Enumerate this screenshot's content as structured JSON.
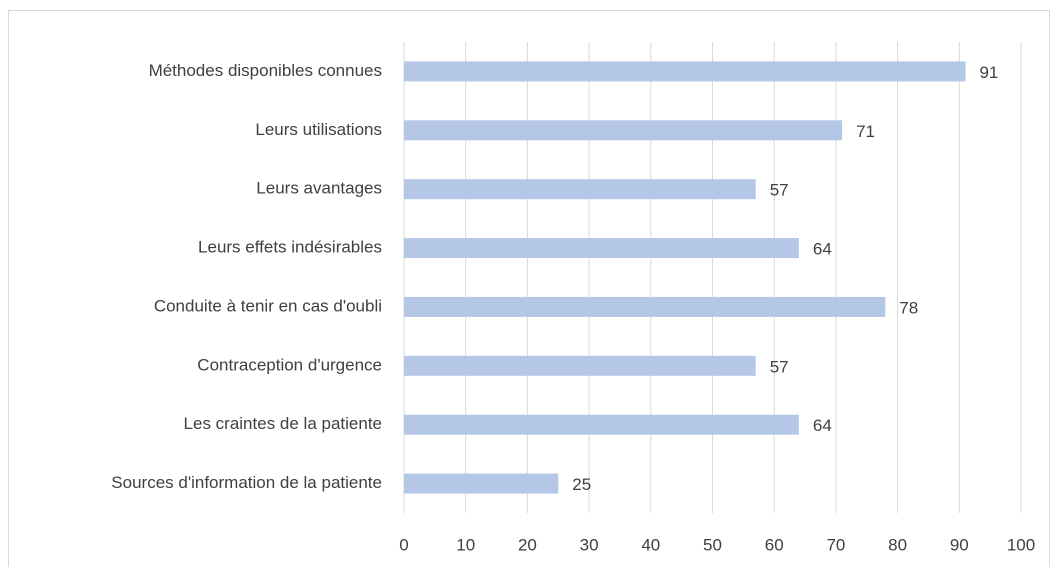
{
  "chart_data": {
    "type": "bar",
    "orientation": "horizontal",
    "categories": [
      "Méthodes disponibles connues",
      "Leurs utilisations",
      "Leurs avantages",
      "Leurs effets indésirables",
      "Conduite à tenir en cas d'oubli",
      "Contraception d'urgence",
      "Les craintes de la patiente",
      "Sources d'information de la patiente"
    ],
    "values": [
      91,
      71,
      57,
      64,
      78,
      57,
      64,
      25
    ],
    "color": "#b4c7e7",
    "xlim": [
      0,
      100
    ],
    "xticks": [
      0,
      10,
      20,
      30,
      40,
      50,
      60,
      70,
      80,
      90,
      100
    ],
    "grid": true
  }
}
